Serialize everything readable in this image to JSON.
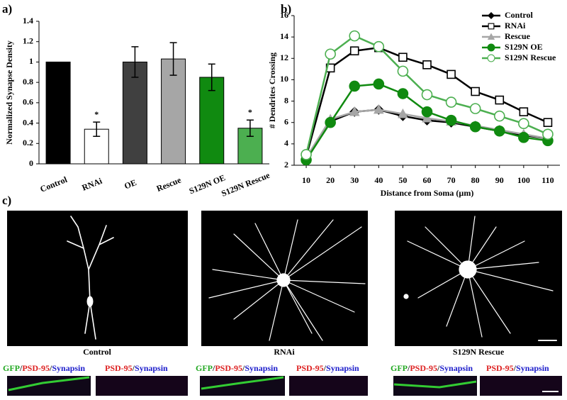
{
  "panel_labels": [
    "a)",
    "b)",
    "c)"
  ],
  "chart_data": [
    {
      "type": "bar",
      "ylabel": "Normalized Synapse Density",
      "categories": [
        "Control",
        "RNAi",
        "OE",
        "Rescue",
        "S129N OE",
        "S129N Rescue"
      ],
      "values": [
        1.0,
        0.34,
        1.0,
        1.03,
        0.85,
        0.35
      ],
      "errors": [
        0,
        0.07,
        0.15,
        0.16,
        0.13,
        0.08
      ],
      "colors": [
        "#000000",
        "#ffffff",
        "#404040",
        "#a6a6a6",
        "#108a10",
        "#4caf50"
      ],
      "ylim": [
        0,
        1.4
      ],
      "yticks": [
        0,
        0.2,
        0.4,
        0.6,
        0.8,
        1,
        1.2,
        1.4
      ],
      "annotations": [
        {
          "text": "*",
          "category": "RNAi"
        },
        {
          "text": "*",
          "category": "S129N Rescue"
        }
      ]
    },
    {
      "type": "line",
      "xlabel": "Distance from Soma (µm)",
      "ylabel": "# Dendrites Crossing",
      "x": [
        10,
        20,
        30,
        40,
        50,
        60,
        70,
        80,
        90,
        100,
        110
      ],
      "xlim": [
        5,
        115
      ],
      "xticks": [
        10,
        20,
        30,
        40,
        50,
        60,
        70,
        80,
        90,
        100,
        110
      ],
      "ylim": [
        2,
        16
      ],
      "yticks": [
        2,
        4,
        6,
        8,
        10,
        12,
        14,
        16
      ],
      "legend": "top-right",
      "series": [
        {
          "name": "Control",
          "color": "#000000",
          "marker": "diamond",
          "filled": true,
          "values": [
            2.6,
            6.1,
            7.0,
            7.2,
            6.6,
            6.2,
            6.0,
            5.6,
            5.2,
            4.8,
            4.5
          ]
        },
        {
          "name": "RNAi",
          "color": "#000000",
          "marker": "square",
          "filled": false,
          "values": [
            2.8,
            11.1,
            12.7,
            13.0,
            12.1,
            11.4,
            10.5,
            8.9,
            8.1,
            7.0,
            6.0
          ]
        },
        {
          "name": "Rescue",
          "color": "#a6a6a6",
          "marker": "triangle",
          "filled": true,
          "values": [
            2.7,
            6.3,
            7.0,
            7.2,
            6.8,
            6.4,
            6.1,
            5.7,
            5.3,
            4.9,
            4.5
          ]
        },
        {
          "name": "S129N OE",
          "color": "#108a10",
          "marker": "circle",
          "filled": true,
          "values": [
            2.5,
            6.0,
            9.4,
            9.6,
            8.7,
            7.0,
            6.2,
            5.6,
            5.2,
            4.6,
            4.3
          ]
        },
        {
          "name": "S129N Rescue",
          "color": "#4caf50",
          "marker": "circle",
          "filled": false,
          "values": [
            3.0,
            12.4,
            14.1,
            13.1,
            10.8,
            8.6,
            7.9,
            7.3,
            6.6,
            5.9,
            4.9
          ]
        }
      ]
    }
  ],
  "panel_c": {
    "conditions": [
      "Control",
      "RNAi",
      "S129N Rescue"
    ],
    "merge_label": [
      {
        "text": "GFP",
        "color": "#22a822"
      },
      {
        "text": "/",
        "color": "#222222"
      },
      {
        "text": "PSD-95",
        "color": "#dd2020"
      },
      {
        "text": "/",
        "color": "#222222"
      },
      {
        "text": "Synapsin",
        "color": "#2020cc"
      }
    ],
    "split_label": [
      {
        "text": "PSD-95",
        "color": "#dd2020"
      },
      {
        "text": "/",
        "color": "#222222"
      },
      {
        "text": "Synapsin",
        "color": "#2020cc"
      }
    ]
  }
}
